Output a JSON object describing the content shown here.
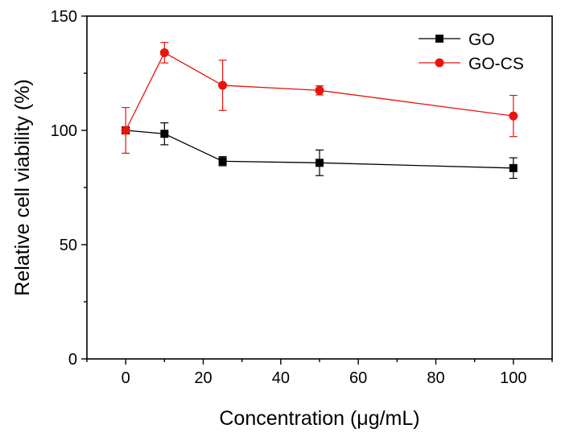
{
  "chart_data": {
    "type": "line",
    "title": "",
    "xlabel": "Concentration (μg/mL)",
    "ylabel": "Relative cell viability (%)",
    "xlim": [
      -10,
      110
    ],
    "ylim": [
      0,
      150
    ],
    "x_ticks": [
      0,
      20,
      40,
      60,
      80,
      100
    ],
    "x_tick_labels": [
      "0",
      "20",
      "40",
      "60",
      "80",
      "100"
    ],
    "y_ticks": [
      0,
      50,
      100,
      150
    ],
    "y_tick_labels": [
      "0",
      "50",
      "100",
      "150"
    ],
    "legend_position": "top-right",
    "series": [
      {
        "name": "GO",
        "color": "#000000",
        "marker": "square",
        "x": [
          0,
          10,
          25,
          50,
          100
        ],
        "values": [
          100,
          98.5,
          86.5,
          85.8,
          83.5
        ],
        "errors": [
          0,
          4.8,
          2,
          5.6,
          4.5
        ]
      },
      {
        "name": "GO-CS",
        "color": "#e8140c",
        "marker": "circle",
        "x": [
          0,
          10,
          25,
          50,
          100
        ],
        "values": [
          100,
          134,
          119.7,
          117.5,
          106.3
        ],
        "errors": [
          10,
          4.5,
          11,
          2,
          9
        ]
      }
    ]
  }
}
